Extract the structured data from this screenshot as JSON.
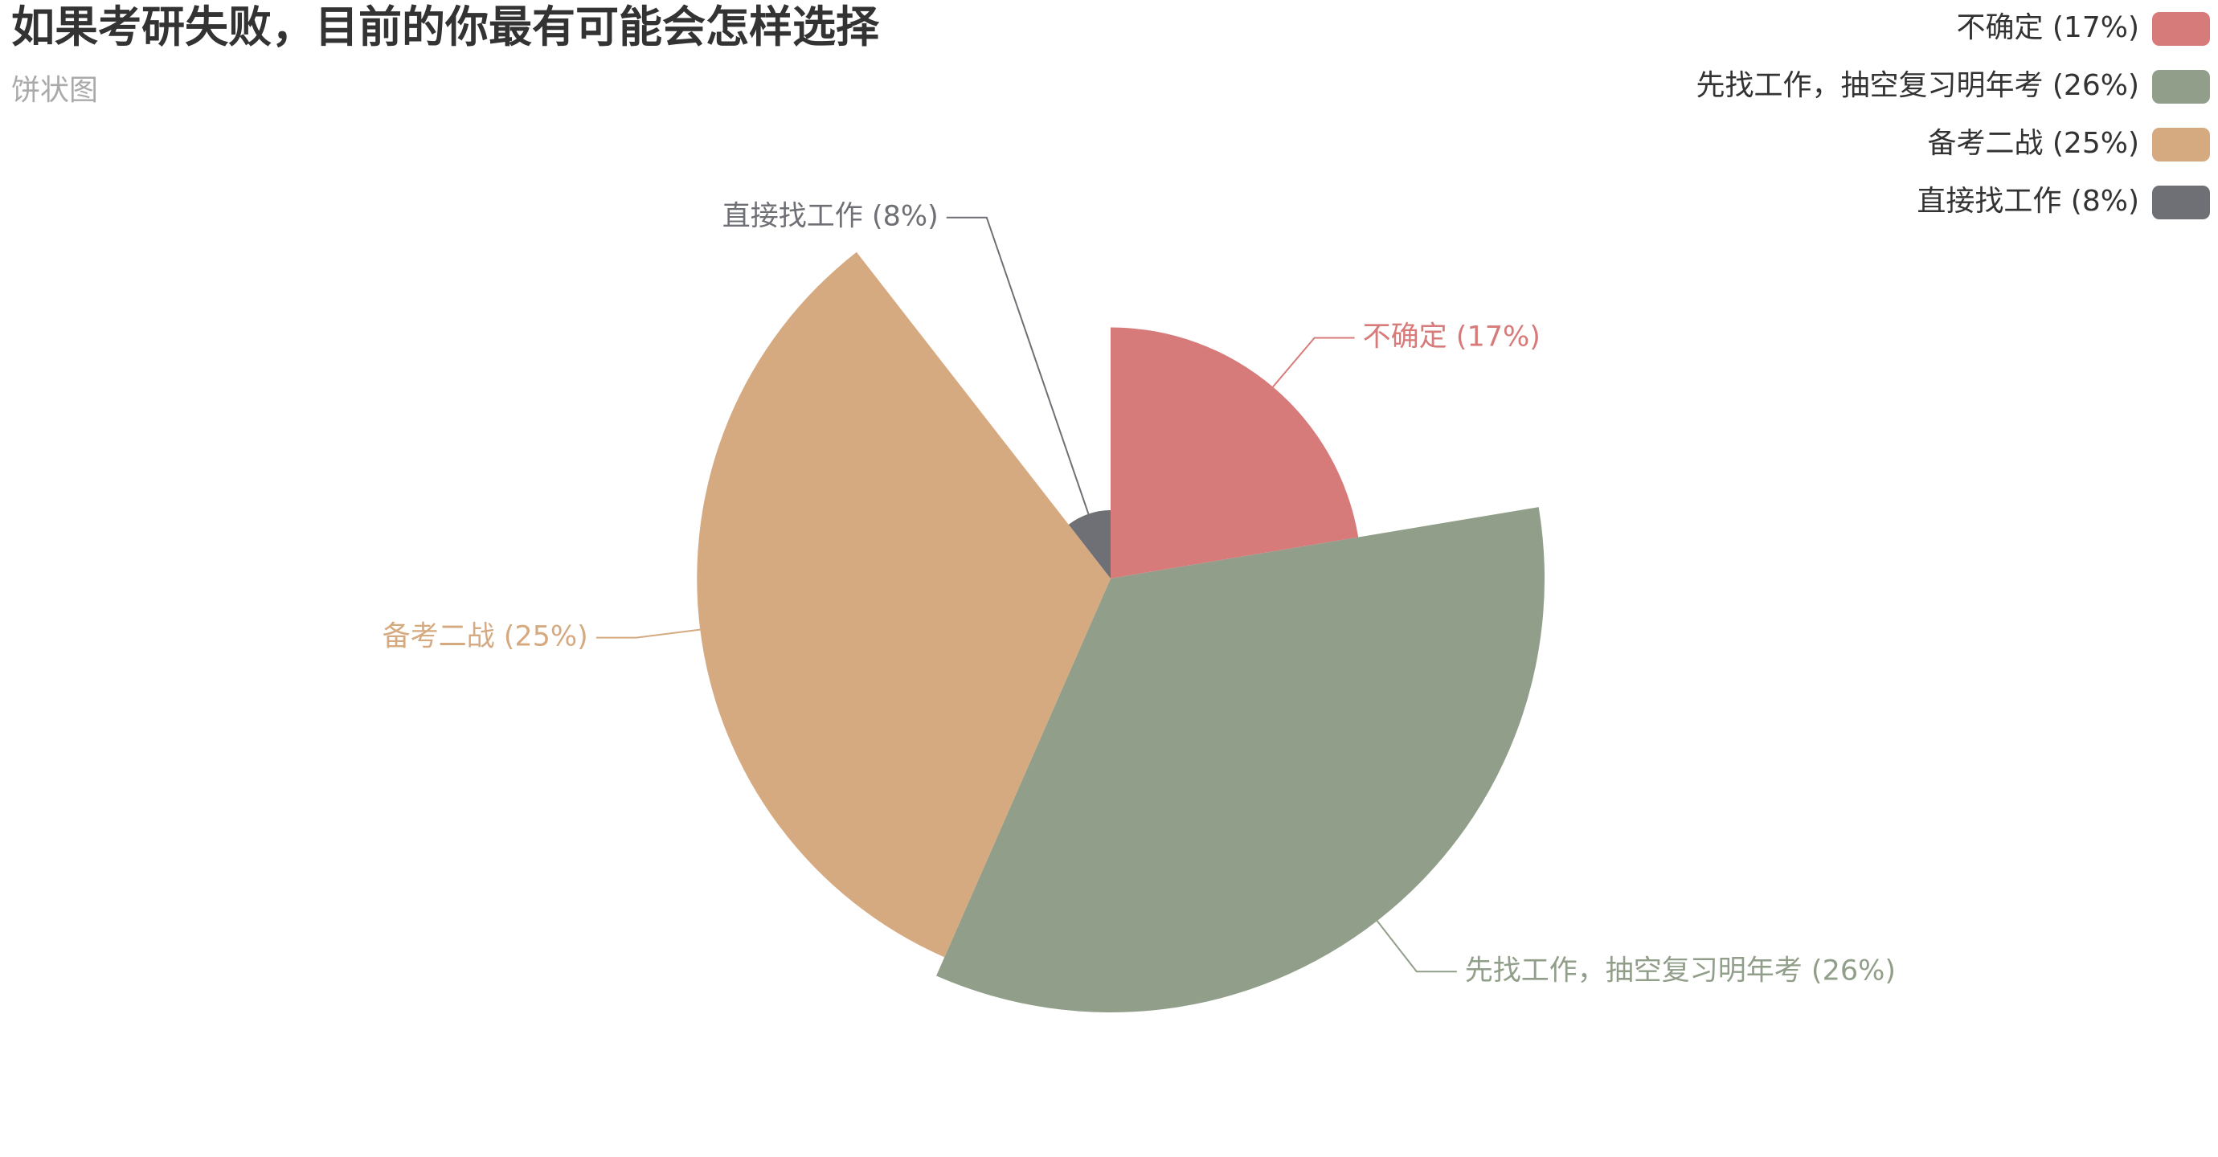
{
  "chart_data": {
    "type": "pie",
    "subtype": "rose-radius",
    "title": "如果考研失败，目前的你最有可能会怎样选择",
    "subtitle": "饼状图",
    "legend_position": "top-right",
    "slices": [
      {
        "name": "不确定",
        "value": 17,
        "label": "不确定 (17%)",
        "color": "#d77b7a"
      },
      {
        "name": "先找工作，抽空复习明年考",
        "value": 26,
        "label": "先找工作，抽空复习明年考 (26%)",
        "color": "#919e8a"
      },
      {
        "name": "备考二战",
        "value": 25,
        "label": "备考二战 (25%)",
        "color": "#d5aa80"
      },
      {
        "name": "直接找工作",
        "value": 8,
        "label": "直接找工作 (8%)",
        "color": "#6e7075"
      }
    ]
  }
}
